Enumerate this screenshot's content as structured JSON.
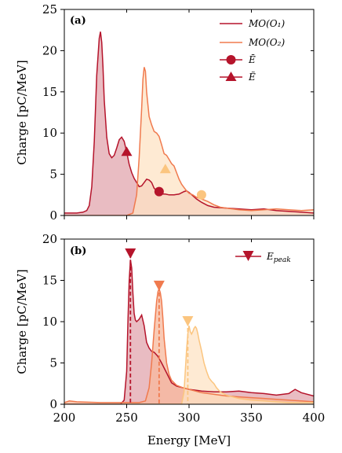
{
  "chart_data": [
    {
      "type": "area",
      "panel_label": "(a)",
      "ylabel": "Charge [pC/MeV]",
      "xlim": [
        200,
        400
      ],
      "ylim": [
        0,
        25
      ],
      "yticks": [
        "0",
        "5",
        "10",
        "15",
        "20",
        "25"
      ],
      "legend_position": "top-right",
      "legend": [
        "MO(O₁)",
        "MO(O₂)",
        "Ē",
        "Ẽ"
      ],
      "series": [
        {
          "name": "MO(O₁)",
          "color": "#b5142b",
          "fill": "#e2a6ae",
          "x": [
            200,
            210,
            215,
            218,
            220,
            222,
            224,
            226,
            228,
            229,
            230,
            231,
            232,
            234,
            236,
            238,
            240,
            242,
            244,
            246,
            248,
            250,
            252,
            254,
            256,
            258,
            260,
            262,
            264,
            266,
            268,
            270,
            272,
            275,
            278,
            281,
            284,
            288,
            292,
            296,
            298,
            300,
            303,
            306,
            310,
            315,
            320,
            330,
            340,
            350,
            360,
            370,
            380,
            390,
            400
          ],
          "y": [
            0.3,
            0.3,
            0.4,
            0.6,
            1.2,
            3.5,
            9.0,
            17.0,
            21.5,
            22.3,
            21.0,
            18.0,
            14.0,
            9.5,
            7.5,
            7.0,
            7.3,
            8.2,
            9.2,
            9.5,
            9.0,
            7.7,
            6.2,
            5.2,
            4.5,
            4.0,
            3.5,
            3.6,
            4.0,
            4.4,
            4.3,
            4.0,
            3.3,
            2.9,
            2.6,
            2.6,
            2.5,
            2.5,
            2.6,
            2.9,
            3.0,
            2.8,
            2.4,
            2.0,
            1.6,
            1.2,
            1.0,
            0.9,
            0.8,
            0.7,
            0.8,
            0.6,
            0.5,
            0.4,
            0.3
          ]
        },
        {
          "name": "MO(O₂)",
          "color": "#f07a4e",
          "fill": "#fde3c4",
          "x": [
            200,
            240,
            250,
            255,
            258,
            260,
            262,
            263,
            264,
            265,
            266,
            268,
            270,
            272,
            274,
            276,
            278,
            280,
            282,
            284,
            286,
            288,
            290,
            292,
            294,
            296,
            298,
            300,
            303,
            306,
            310,
            315,
            320,
            325,
            330,
            340,
            350,
            360,
            370,
            380,
            390,
            400
          ],
          "y": [
            0,
            0,
            0,
            0.3,
            2.5,
            7.0,
            13.0,
            16.5,
            18.0,
            17.5,
            15.0,
            12.0,
            11.0,
            10.2,
            10.0,
            9.6,
            8.6,
            7.5,
            7.3,
            6.8,
            6.3,
            6.0,
            5.2,
            4.4,
            3.8,
            3.4,
            3.0,
            2.7,
            2.5,
            2.2,
            2.0,
            1.7,
            1.3,
            1.0,
            0.9,
            0.7,
            0.6,
            0.7,
            0.8,
            0.7,
            0.6,
            0.7
          ]
        }
      ],
      "markers": [
        {
          "series": "MO(O₁)",
          "shape": "circle",
          "x": 276,
          "y": 2.9,
          "color": "#b5142b"
        },
        {
          "series": "MO(O₁)",
          "shape": "triangle-up",
          "x": 250,
          "y": 7.7,
          "color": "#b5142b"
        },
        {
          "series": "MO(O₂)",
          "shape": "circle",
          "x": 310,
          "y": 2.5,
          "color": "#fbc57f"
        },
        {
          "series": "MO(O₂)",
          "shape": "triangle-up",
          "x": 281,
          "y": 5.6,
          "color": "#fbc57f"
        }
      ]
    },
    {
      "type": "area",
      "panel_label": "(b)",
      "xlabel": "Energy [MeV]",
      "ylabel": "Charge [pC/MeV]",
      "xlim": [
        200,
        400
      ],
      "ylim": [
        0,
        20
      ],
      "xticks": [
        "200",
        "250",
        "300",
        "350",
        "400"
      ],
      "yticks": [
        "0",
        "5",
        "10",
        "15",
        "20"
      ],
      "legend_position": "top-right",
      "legend": [
        "E_peak"
      ],
      "series": [
        {
          "color": "#b5142b",
          "fill": "#e2a6ae",
          "x": [
            200,
            230,
            245,
            248,
            250,
            251,
            252,
            253,
            254,
            255,
            256,
            257,
            258,
            260,
            262,
            264,
            266,
            268,
            270,
            272,
            275,
            278,
            282,
            286,
            290,
            295,
            300,
            305,
            310,
            320,
            330,
            340,
            350,
            360,
            370,
            380,
            385,
            390,
            400
          ],
          "y": [
            0,
            0,
            0,
            0.5,
            4.0,
            10.0,
            15.0,
            17.5,
            16.5,
            13.5,
            11.0,
            10.2,
            10.0,
            10.3,
            10.8,
            9.5,
            7.5,
            6.8,
            6.4,
            6.3,
            5.8,
            5.0,
            3.8,
            2.6,
            2.2,
            2.0,
            1.8,
            1.7,
            1.6,
            1.5,
            1.5,
            1.6,
            1.4,
            1.3,
            1.1,
            1.3,
            1.8,
            1.4,
            1.0
          ]
        },
        {
          "color": "#f07a4e",
          "fill": "#f7b89c",
          "x": [
            200,
            204,
            210,
            230,
            250,
            260,
            265,
            268,
            270,
            272,
            274,
            275,
            276,
            277,
            278,
            279,
            280,
            282,
            284,
            286,
            288,
            290,
            295,
            300,
            305,
            310,
            320,
            330,
            340,
            350,
            360,
            370,
            380,
            390,
            400
          ],
          "y": [
            0.2,
            0.4,
            0.3,
            0.2,
            0.2,
            0.2,
            0.4,
            2.0,
            5.0,
            9.0,
            12.5,
            13.6,
            14.0,
            13.5,
            12.5,
            10.5,
            8.0,
            5.0,
            3.6,
            2.9,
            2.6,
            2.3,
            2.0,
            1.8,
            1.6,
            1.4,
            1.2,
            1.0,
            0.9,
            0.8,
            0.7,
            0.6,
            0.5,
            0.4,
            0.3
          ]
        },
        {
          "color": "#fbc57f",
          "fill": "#fde3c4",
          "x": [
            200,
            290,
            294,
            296,
            297,
            298,
            299,
            300,
            301,
            302,
            303,
            304,
            305,
            306,
            307,
            308,
            310,
            312,
            314,
            316,
            318,
            320,
            322,
            325,
            330,
            335,
            340,
            345,
            350,
            360,
            370,
            380,
            400
          ],
          "y": [
            0,
            0,
            0,
            1.5,
            4.0,
            6.5,
            8.5,
            9.5,
            8.8,
            8.5,
            8.8,
            9.2,
            9.4,
            9.2,
            8.6,
            7.8,
            6.5,
            5.0,
            4.0,
            3.2,
            2.8,
            2.5,
            2.0,
            1.5,
            1.1,
            0.9,
            0.7,
            0.6,
            0.5,
            0.4,
            0.3,
            0.2,
            0.2
          ]
        }
      ],
      "peak_markers": [
        {
          "x": 253,
          "y": 18.2,
          "color": "#b5142b"
        },
        {
          "x": 276,
          "y": 14.3,
          "color": "#f07a4e"
        },
        {
          "x": 299,
          "y": 10.0,
          "color": "#fbc57f"
        }
      ]
    }
  ]
}
